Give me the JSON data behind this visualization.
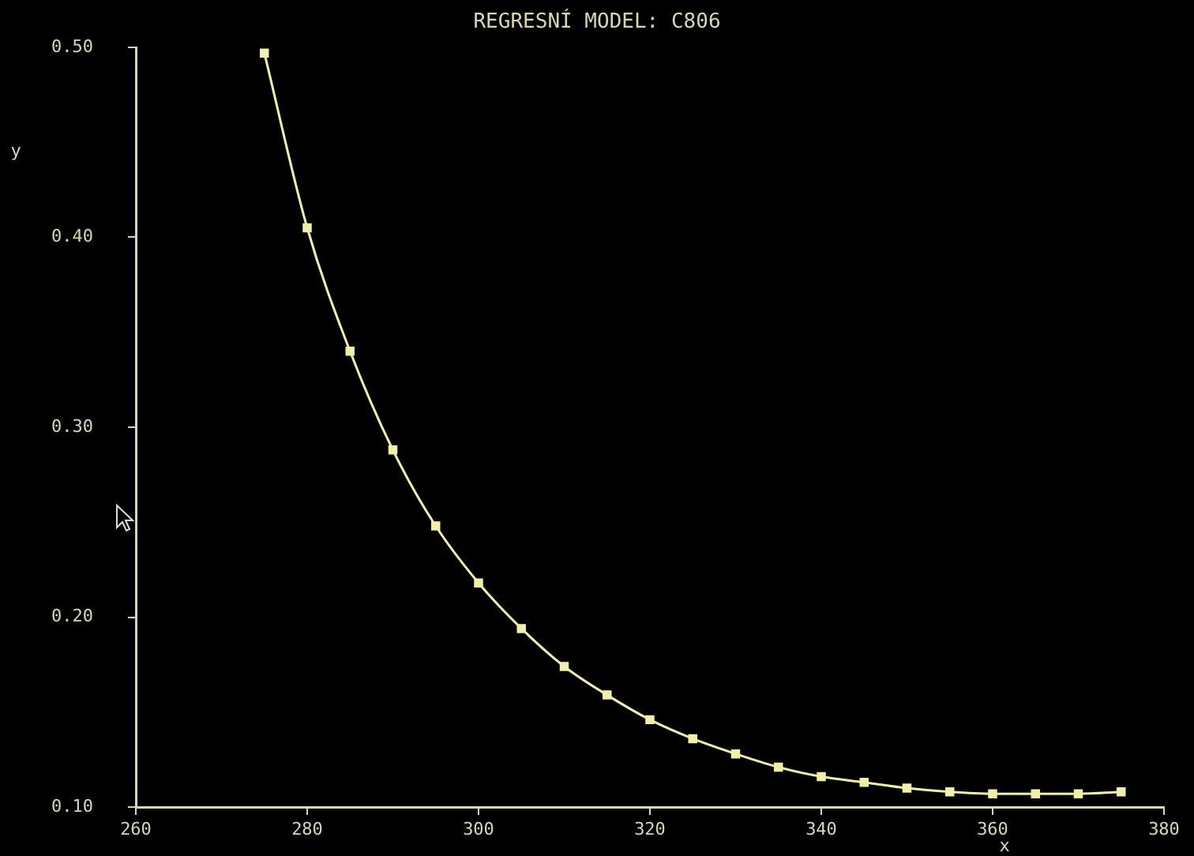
{
  "chart_data": {
    "type": "line",
    "title": "REGRESNÍ MODEL: C806",
    "xlabel": "x",
    "ylabel": "y",
    "x": [
      275,
      280,
      285,
      290,
      295,
      300,
      305,
      310,
      315,
      320,
      325,
      330,
      335,
      340,
      345,
      350,
      355,
      360,
      365,
      370,
      375
    ],
    "series": [
      {
        "color": "#f2f0a8",
        "values": [
          0.497,
          0.405,
          0.34,
          0.288,
          0.248,
          0.218,
          0.194,
          0.174,
          0.159,
          0.146,
          0.136,
          0.128,
          0.121,
          0.116,
          0.113,
          0.11,
          0.108,
          0.107,
          0.107,
          0.107,
          0.108
        ]
      }
    ],
    "xlim": [
      260,
      380
    ],
    "xticks": [
      260,
      280,
      300,
      320,
      340,
      360,
      380
    ],
    "ylim": [
      0.1,
      0.5
    ],
    "yticks": [
      {
        "value": 0.1,
        "label": "0.10"
      },
      {
        "value": 0.2,
        "label": "0.20"
      },
      {
        "value": 0.3,
        "label": "0.30"
      },
      {
        "value": 0.4,
        "label": "0.40"
      },
      {
        "value": 0.5,
        "label": "0.50"
      }
    ],
    "grid": false,
    "legend": false,
    "marker": "square",
    "line_style": "solid"
  }
}
